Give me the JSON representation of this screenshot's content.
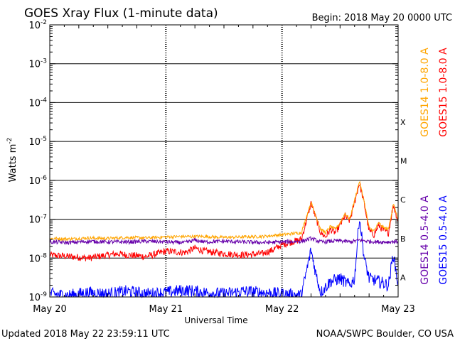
{
  "chart_data": {
    "type": "line",
    "title": "GOES Xray Flux (1-minute data)",
    "begin_label": "Begin:  2018 May 20 0000 UTC",
    "xlabel": "Universal Time",
    "ylabel": "Watts m",
    "ylabel_sup": "-2",
    "yscale": "log",
    "ylim": [
      1e-09,
      0.01
    ],
    "y_ticks": [
      {
        "base": "10",
        "exp": "-2"
      },
      {
        "base": "10",
        "exp": "-3"
      },
      {
        "base": "10",
        "exp": "-4"
      },
      {
        "base": "10",
        "exp": "-5"
      },
      {
        "base": "10",
        "exp": "-6"
      },
      {
        "base": "10",
        "exp": "-7"
      },
      {
        "base": "10",
        "exp": "-8"
      },
      {
        "base": "10",
        "exp": "-9"
      }
    ],
    "x_ticks": [
      "May 20",
      "May 21",
      "May 22",
      "May 23"
    ],
    "xlim_hours": [
      0,
      72
    ],
    "flare_classes": [
      "X",
      "M",
      "C",
      "B",
      "A"
    ],
    "grid": true,
    "series": [
      {
        "name": "GOES15 1.0-8.0 A",
        "color": "#ff0000",
        "hours": [
          0,
          4,
          8,
          12,
          14,
          16,
          20,
          24,
          28,
          30,
          32,
          36,
          40,
          44,
          46,
          48,
          50,
          52,
          54,
          56,
          57,
          58,
          59,
          60,
          61,
          62,
          64,
          65,
          66,
          67,
          68,
          69,
          70,
          71,
          72
        ],
        "values": [
          1.2e-08,
          1.1e-08,
          1e-08,
          1.2e-08,
          1.3e-08,
          1.2e-08,
          1.1e-08,
          1.5e-08,
          1.4e-08,
          1.8e-08,
          1.5e-08,
          1.3e-08,
          1.2e-08,
          1.3e-08,
          1.6e-08,
          2.2e-08,
          2.6e-08,
          3e-08,
          2.6e-07,
          4.5e-08,
          3.5e-08,
          5.5e-08,
          4.5e-08,
          7e-08,
          1.2e-07,
          9e-08,
          8.5e-07,
          2.5e-07,
          5e-08,
          4e-08,
          7e-08,
          5e-08,
          4.5e-08,
          2.3e-07,
          9e-08
        ]
      },
      {
        "name": "GOES14 1.0-8.0 A",
        "color": "#ffa500",
        "hours": [
          0,
          4,
          8,
          12,
          16,
          20,
          24,
          28,
          32,
          36,
          40,
          44,
          48,
          52,
          54,
          56,
          57,
          58,
          59,
          60,
          61,
          62,
          64,
          65,
          66,
          67,
          68,
          69,
          70,
          71,
          72
        ],
        "values": [
          3.2e-08,
          3.1e-08,
          3.3e-08,
          3.2e-08,
          3.4e-08,
          3.3e-08,
          3.5e-08,
          3.6e-08,
          3.6e-08,
          3.4e-08,
          3.5e-08,
          3.6e-08,
          4e-08,
          4.5e-08,
          2.7e-07,
          5.5e-08,
          4.5e-08,
          6.5e-08,
          5.5e-08,
          8e-08,
          1.4e-07,
          1e-07,
          9.5e-07,
          2.8e-07,
          6e-08,
          5e-08,
          8e-08,
          6e-08,
          5.5e-08,
          2.5e-07,
          1e-07
        ]
      },
      {
        "name": "GOES15 0.5-4.0 A",
        "color": "#0000ff",
        "hours": [
          0,
          4,
          8,
          12,
          16,
          20,
          24,
          28,
          32,
          36,
          40,
          44,
          48,
          52,
          54,
          55,
          56,
          58,
          60,
          62,
          63,
          64,
          65,
          66,
          68,
          70,
          71,
          72
        ],
        "values": [
          1.2e-09,
          1.1e-09,
          1.3e-09,
          1.2e-09,
          1.4e-09,
          1.2e-09,
          1.3e-09,
          1.5e-09,
          1.3e-09,
          1.2e-09,
          1.4e-09,
          1.3e-09,
          1.2e-09,
          1.1e-09,
          1.6e-08,
          4e-09,
          1.3e-09,
          2.5e-09,
          3e-09,
          2e-09,
          3e-09,
          1.2e-07,
          1e-08,
          3e-09,
          2.5e-09,
          2e-09,
          1.3e-08,
          2e-09
        ]
      },
      {
        "name": "GOES14 0.5-4.0 A",
        "color": "#6600aa",
        "hours": [
          0,
          4,
          8,
          12,
          16,
          20,
          24,
          28,
          30,
          32,
          36,
          40,
          44,
          48,
          52,
          54,
          56,
          58,
          60,
          62,
          64,
          66,
          68,
          70,
          72
        ],
        "values": [
          2.6e-08,
          2.5e-08,
          2.7e-08,
          2.6e-08,
          2.6e-08,
          2.7e-08,
          2.6e-08,
          2.5e-08,
          2.9e-08,
          2.6e-08,
          2.7e-08,
          2.6e-08,
          2.5e-08,
          2.6e-08,
          2.7e-08,
          3.2e-08,
          2.6e-08,
          2.7e-08,
          2.8e-08,
          2.6e-08,
          2.9e-08,
          2.7e-08,
          2.6e-08,
          2.6e-08,
          2.7e-08
        ]
      }
    ]
  },
  "footer": {
    "updated": "Updated 2018 May 22 23:59:11 UTC",
    "credit": "NOAA/SWPC Boulder, CO USA"
  }
}
